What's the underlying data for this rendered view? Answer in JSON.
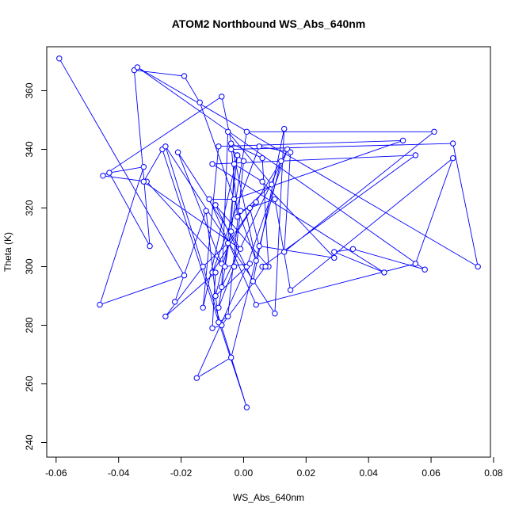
{
  "chart_data": {
    "type": "line",
    "title": "ATOM2 Northbound WS_Abs_640nm",
    "xlabel": "WS_Abs_640nm",
    "ylabel": "Theta (K)",
    "xlim": [
      -0.063,
      0.079
    ],
    "ylim": [
      235,
      375
    ],
    "xticks": [
      -0.06,
      -0.04,
      -0.02,
      0.0,
      0.02,
      0.04,
      0.06,
      0.08
    ],
    "xtick_labels": [
      "-0.06",
      "-0.04",
      "-0.02",
      "0.00",
      "0.02",
      "0.04",
      "0.06",
      "0.08"
    ],
    "yticks": [
      240,
      260,
      280,
      300,
      320,
      340,
      360
    ],
    "ytick_labels": [
      "240",
      "260",
      "280",
      "300",
      "320",
      "340",
      "360"
    ],
    "grid": false,
    "line_color": "#0000ff",
    "marker": "open-circle",
    "series": [
      {
        "x": [
          -0.059,
          -0.019,
          -0.046,
          -0.032,
          -0.043,
          -0.03,
          -0.035,
          -0.019,
          -0.014,
          0.004,
          -0.007,
          -0.045,
          -0.031,
          -0.007,
          -0.021,
          -0.001,
          -0.032,
          -0.026,
          0.001,
          -0.025,
          0.01,
          0.013,
          0.003,
          -0.009,
          0.008,
          0.006,
          -0.004,
          -0.002,
          0.009,
          -0.005,
          -0.007,
          0.014,
          0.001,
          -0.015,
          -0.004,
          0.012,
          -0.01,
          0.005,
          0.015,
          0.013,
          0.061,
          0.001,
          -0.008,
          -0.003,
          -0.001,
          0.01,
          0.015,
          0.067,
          0.055,
          0.004,
          -0.011,
          -0.003,
          0.051,
          -0.008,
          -0.013,
          -0.002,
          -0.004,
          0.067,
          0.075,
          -0.034,
          0.058,
          0.035,
          0.029,
          0.045,
          -0.01,
          0.055,
          0.006,
          0.007,
          -0.007,
          -0.01,
          -0.009,
          -0.025,
          -0.013,
          -0.005,
          0.004,
          0.002,
          0.005,
          0.029,
          0.006,
          -0.003,
          -0.004,
          -0.009,
          0.002,
          -0.006,
          -0.002,
          0.0,
          -0.005,
          -0.008,
          -0.012,
          -0.022
        ],
        "y": [
          371,
          297,
          287,
          334,
          332,
          307,
          367,
          365,
          356,
          302,
          358,
          331,
          329,
          301,
          339,
          306,
          329,
          340,
          252,
          341,
          284,
          347,
          295,
          321,
          300,
          337,
          342,
          317,
          328,
          346,
          293,
          340,
          300,
          262,
          269,
          336,
          298,
          341,
          339,
          305,
          346,
          346,
          286,
          300,
          319,
          323,
          292,
          337,
          301,
          287,
          323,
          323,
          343,
          341,
          286,
          338,
          340,
          342,
          300,
          368,
          299,
          306,
          305,
          298,
          335,
          338,
          300,
          300,
          280,
          279,
          298,
          283,
          300,
          308,
          322,
          320,
          307,
          303,
          329,
          335,
          312,
          290,
          301,
          300,
          338,
          336,
          283,
          281,
          319,
          288
        ]
      }
    ]
  }
}
